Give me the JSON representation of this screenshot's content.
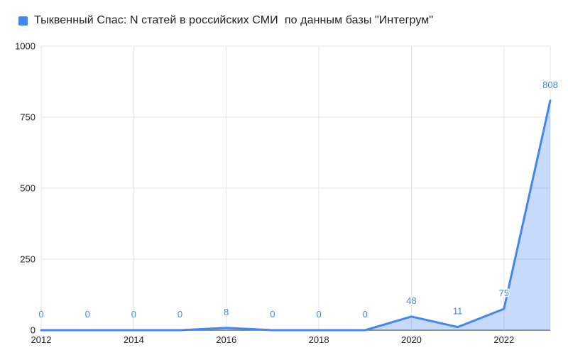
{
  "legend": {
    "series_label": "Тыквенный Спас: N статей в российских СМИ  по данным базы \"Интегрум\""
  },
  "chart_data": {
    "type": "area",
    "title": "Тыквенный Спас: N статей в российских СМИ  по данным базы \"Интегрум\"",
    "x": [
      2012,
      2013,
      2014,
      2015,
      2016,
      2017,
      2018,
      2019,
      2020,
      2021,
      2022,
      2023
    ],
    "values": [
      0,
      0,
      0,
      0,
      8,
      0,
      0,
      0,
      48,
      11,
      75,
      808
    ],
    "data_labels": [
      "0",
      "0",
      "0",
      "0",
      "8",
      "0",
      "0",
      "0",
      "48",
      "11",
      "75",
      "808"
    ],
    "xlabel": "",
    "ylabel": "",
    "ylim": [
      0,
      1000
    ],
    "y_ticks": [
      0,
      250,
      500,
      750,
      1000
    ],
    "x_ticks": [
      2012,
      2014,
      2016,
      2018,
      2020,
      2022
    ],
    "grid": "on",
    "legend_position": "top-left",
    "colors": {
      "series": "#4285f4",
      "area_fill": "rgba(66,133,244,0.30)",
      "data_label": "#4285f4",
      "gridline": "#e3e3e3",
      "baseline": "#757575",
      "axis_text": "#1f1f1f",
      "background": "#ffffff"
    }
  }
}
